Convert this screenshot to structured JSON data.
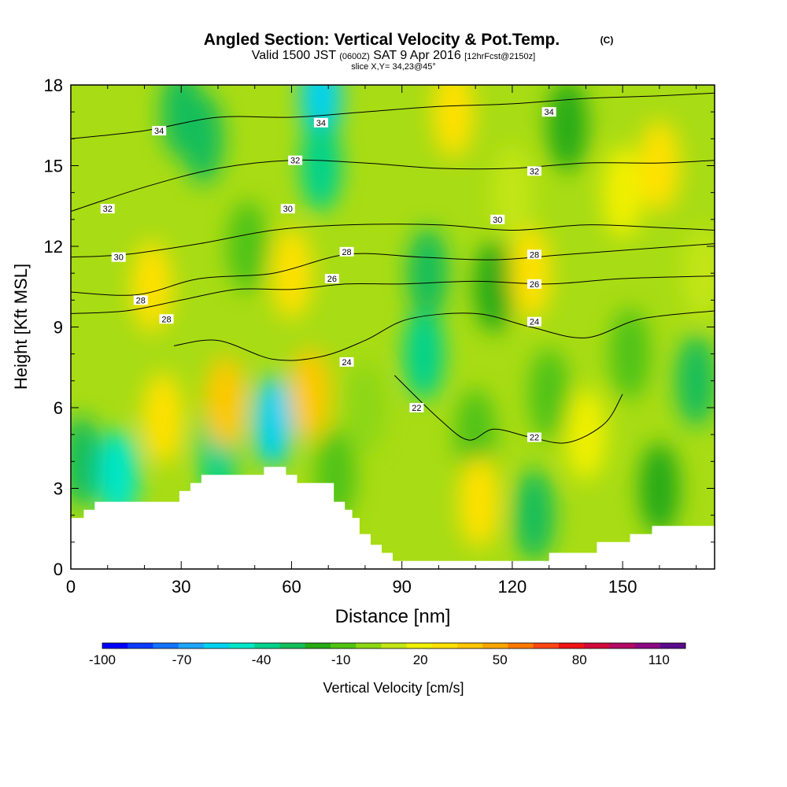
{
  "chart_data": {
    "type": "heatmap",
    "title": "Angled Section: Vertical Velocity & Pot.Temp.",
    "title_unit": "(C)",
    "subtitle_parts": [
      "Valid 1500 JST",
      "(0600Z)",
      "SAT 9 Apr 2016",
      "[12hrFcst@2150z]"
    ],
    "subtitle2": "slice X,Y= 34,23@45°",
    "xlabel": "Distance [nm]",
    "ylabel": "Height [Kft MSL]",
    "xlim": [
      0,
      175
    ],
    "ylim": [
      0,
      18
    ],
    "x_ticks": [
      0,
      30,
      60,
      90,
      120,
      150
    ],
    "y_ticks": [
      0,
      3,
      6,
      9,
      12,
      15,
      18
    ],
    "colorbar": {
      "label": "Vertical Velocity [cm/s]",
      "tick_labels": [
        "-100",
        "-70",
        "-40",
        "-10",
        "20",
        "50",
        "80",
        "110"
      ],
      "tick_values": [
        -100,
        -70,
        -40,
        -10,
        20,
        50,
        80,
        110
      ],
      "range": [
        -100,
        120
      ],
      "step": 10,
      "colors": [
        "#0000ff",
        "#0a3cff",
        "#1473ff",
        "#1ea5ff",
        "#00d2f0",
        "#00e6c8",
        "#00d28c",
        "#14be5a",
        "#28aa14",
        "#50c314",
        "#8cd714",
        "#c3e614",
        "#f0f000",
        "#ffe100",
        "#ffc800",
        "#ffa500",
        "#ff7800",
        "#ff4614",
        "#f01414",
        "#d20a3c",
        "#b40a64",
        "#8c0a82",
        "#5a0a8c"
      ]
    },
    "theta_contours": [
      {
        "label": "22",
        "points": [
          [
            88,
            7.2
          ],
          [
            100,
            5.6
          ],
          [
            108,
            4.8
          ],
          [
            115,
            5.2
          ],
          [
            125,
            4.9
          ],
          [
            135,
            4.7
          ],
          [
            145,
            5.4
          ],
          [
            150,
            6.5
          ]
        ],
        "label_positions": [
          [
            94,
            6.0
          ],
          [
            126,
            4.9
          ]
        ]
      },
      {
        "label": "24",
        "points": [
          [
            28,
            8.3
          ],
          [
            40,
            8.5
          ],
          [
            55,
            7.8
          ],
          [
            68,
            7.9
          ],
          [
            80,
            8.5
          ],
          [
            92,
            9.3
          ],
          [
            110,
            9.5
          ],
          [
            125,
            9.0
          ],
          [
            140,
            8.6
          ],
          [
            155,
            9.3
          ],
          [
            175,
            9.6
          ]
        ],
        "label_positions": [
          [
            75,
            7.7
          ],
          [
            126,
            9.2
          ]
        ]
      },
      {
        "label": "26",
        "points": [
          [
            0,
            9.5
          ],
          [
            15,
            9.6
          ],
          [
            30,
            10.0
          ],
          [
            45,
            10.4
          ],
          [
            60,
            10.4
          ],
          [
            75,
            10.6
          ],
          [
            90,
            10.6
          ],
          [
            110,
            10.7
          ],
          [
            130,
            10.6
          ],
          [
            150,
            10.8
          ],
          [
            175,
            10.9
          ]
        ],
        "label_positions": [
          [
            71,
            10.8
          ],
          [
            126,
            10.6
          ]
        ]
      },
      {
        "label": "28",
        "points": [
          [
            0,
            10.3
          ],
          [
            18,
            10.2
          ],
          [
            35,
            10.8
          ],
          [
            55,
            11.0
          ],
          [
            75,
            11.7
          ],
          [
            95,
            11.6
          ],
          [
            115,
            11.5
          ],
          [
            135,
            11.7
          ],
          [
            155,
            11.9
          ],
          [
            175,
            12.1
          ]
        ],
        "label_positions": [
          [
            19,
            10.0
          ],
          [
            26,
            9.3
          ],
          [
            75,
            11.8
          ],
          [
            126,
            11.7
          ]
        ]
      },
      {
        "label": "30",
        "points": [
          [
            0,
            11.6
          ],
          [
            15,
            11.7
          ],
          [
            35,
            12.1
          ],
          [
            55,
            12.6
          ],
          [
            75,
            12.8
          ],
          [
            100,
            12.8
          ],
          [
            120,
            12.6
          ],
          [
            140,
            12.8
          ],
          [
            160,
            12.7
          ],
          [
            175,
            12.6
          ]
        ],
        "label_positions": [
          [
            13,
            11.6
          ],
          [
            59,
            13.4
          ],
          [
            116,
            13.0
          ]
        ]
      },
      {
        "label": "32",
        "points": [
          [
            0,
            13.3
          ],
          [
            20,
            14.2
          ],
          [
            40,
            14.9
          ],
          [
            60,
            15.2
          ],
          [
            80,
            15.1
          ],
          [
            100,
            14.9
          ],
          [
            120,
            14.9
          ],
          [
            140,
            15.1
          ],
          [
            160,
            15.1
          ],
          [
            175,
            15.2
          ]
        ],
        "label_positions": [
          [
            10,
            13.4
          ],
          [
            61,
            15.2
          ],
          [
            126,
            14.8
          ]
        ]
      },
      {
        "label": "34",
        "points": [
          [
            0,
            16.0
          ],
          [
            20,
            16.3
          ],
          [
            40,
            16.8
          ],
          [
            60,
            16.8
          ],
          [
            80,
            17.0
          ],
          [
            100,
            17.2
          ],
          [
            120,
            17.3
          ],
          [
            140,
            17.5
          ],
          [
            160,
            17.6
          ],
          [
            175,
            17.7
          ]
        ],
        "label_positions": [
          [
            24,
            16.3
          ],
          [
            68,
            16.6
          ],
          [
            130,
            17.0
          ]
        ]
      }
    ],
    "velocity_cells": [
      {
        "x": 3,
        "y": 4.0,
        "value": -30
      },
      {
        "x": 13,
        "y": 3.5,
        "value": -50
      },
      {
        "x": 22,
        "y": 10.5,
        "value": 35
      },
      {
        "x": 25,
        "y": 5.6,
        "value": 30
      },
      {
        "x": 30,
        "y": 17.0,
        "value": -30
      },
      {
        "x": 36,
        "y": 16.0,
        "value": -30
      },
      {
        "x": 40,
        "y": 4.5,
        "value": -40
      },
      {
        "x": 42,
        "y": 6.2,
        "value": 40
      },
      {
        "x": 48,
        "y": 12.0,
        "value": -10
      },
      {
        "x": 55,
        "y": 5.5,
        "value": -60
      },
      {
        "x": 60,
        "y": 11.0,
        "value": 35
      },
      {
        "x": 65,
        "y": 6.5,
        "value": 40
      },
      {
        "x": 68,
        "y": 17.5,
        "value": -60
      },
      {
        "x": 68,
        "y": 15.0,
        "value": -40
      },
      {
        "x": 72,
        "y": 3.5,
        "value": -10
      },
      {
        "x": 80,
        "y": 6.0,
        "value": 0
      },
      {
        "x": 96,
        "y": 8.0,
        "value": -40
      },
      {
        "x": 97,
        "y": 11.0,
        "value": -30
      },
      {
        "x": 104,
        "y": 17.0,
        "value": 35
      },
      {
        "x": 110,
        "y": 5.0,
        "value": -5
      },
      {
        "x": 111,
        "y": 2.5,
        "value": 30
      },
      {
        "x": 115,
        "y": 10.5,
        "value": -20
      },
      {
        "x": 120,
        "y": 14.0,
        "value": 10
      },
      {
        "x": 125,
        "y": 11.0,
        "value": 30
      },
      {
        "x": 126,
        "y": 2.0,
        "value": -30
      },
      {
        "x": 130,
        "y": 6.5,
        "value": -10
      },
      {
        "x": 135,
        "y": 16.5,
        "value": -20
      },
      {
        "x": 140,
        "y": 5.0,
        "value": 25
      },
      {
        "x": 150,
        "y": 14.0,
        "value": 25
      },
      {
        "x": 152,
        "y": 8.0,
        "value": -10
      },
      {
        "x": 160,
        "y": 3.0,
        "value": -15
      },
      {
        "x": 160,
        "y": 15.0,
        "value": 35
      },
      {
        "x": 170,
        "y": 7.0,
        "value": -30
      },
      {
        "x": 172,
        "y": 11.0,
        "value": 15
      }
    ],
    "terrain": [
      [
        0,
        1.9
      ],
      [
        3.5,
        1.9
      ],
      [
        3.5,
        2.2
      ],
      [
        6.5,
        2.2
      ],
      [
        6.5,
        2.5
      ],
      [
        29.5,
        2.5
      ],
      [
        29.5,
        2.9
      ],
      [
        32.5,
        2.9
      ],
      [
        32.5,
        3.2
      ],
      [
        35.5,
        3.2
      ],
      [
        35.5,
        3.5
      ],
      [
        52.5,
        3.5
      ],
      [
        52.5,
        3.8
      ],
      [
        58.5,
        3.8
      ],
      [
        58.5,
        3.5
      ],
      [
        61.5,
        3.5
      ],
      [
        61.5,
        3.2
      ],
      [
        71.5,
        3.2
      ],
      [
        71.5,
        2.5
      ],
      [
        74.5,
        2.5
      ],
      [
        74.5,
        2.2
      ],
      [
        76.5,
        2.2
      ],
      [
        76.5,
        1.9
      ],
      [
        78.5,
        1.9
      ],
      [
        78.5,
        1.3
      ],
      [
        81.5,
        1.3
      ],
      [
        81.5,
        0.9
      ],
      [
        84.5,
        0.9
      ],
      [
        84.5,
        0.6
      ],
      [
        87.5,
        0.6
      ],
      [
        87.5,
        0.3
      ],
      [
        130,
        0.3
      ],
      [
        130,
        0.6
      ],
      [
        143,
        0.6
      ],
      [
        143,
        1.0
      ],
      [
        152,
        1.0
      ],
      [
        152,
        1.3
      ],
      [
        158,
        1.3
      ],
      [
        158,
        1.6
      ],
      [
        175,
        1.6
      ],
      [
        175,
        0
      ],
      [
        0,
        0
      ]
    ]
  }
}
